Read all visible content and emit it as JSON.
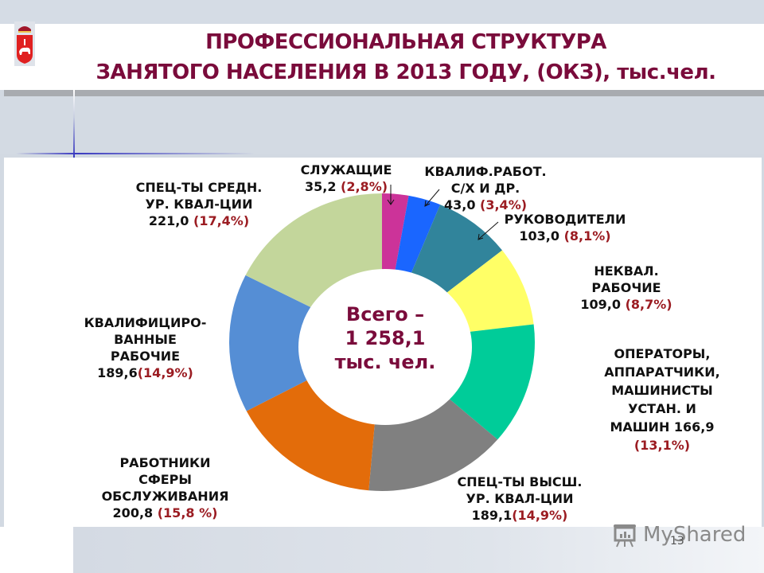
{
  "header": {
    "title_line1": "ПРОФЕССИОНАЛЬНАЯ СТРУКТУРА",
    "title_line2": "ЗАНЯТОГО НАСЕЛЕНИЯ В 2013 ГОДУ, (ОКЗ), тыс.чел.",
    "logo": "perm-krai-coat-of-arms-icon"
  },
  "center": {
    "line1": "Всего –",
    "line2": "1 258,1",
    "line3": "тыс. чел."
  },
  "labels": {
    "sluzhashchie": {
      "l1": "СЛУЖАЩИЕ",
      "value": "35,2",
      "pct": "(2,8%)"
    },
    "kvalif_sh": {
      "l1": "КВАЛИФ.РАБОТ.",
      "l2": "С/Х И ДР.",
      "value": "43,0",
      "pct": "(3,4%)"
    },
    "rukovoditeli": {
      "l1": "РУКОВОДИТЕЛИ",
      "value": "103,0",
      "pct": "(8,1%)"
    },
    "nekval": {
      "l1": "НЕКВАЛ.",
      "l2": "РАБОЧИЕ",
      "value": "109,0",
      "pct": "(8,7%)"
    },
    "operatory": {
      "l1": "ОПЕРАТОРЫ,",
      "l2": "АППАРАТЧИКИ,",
      "l3": "МАШИНИСТЫ",
      "l4": "УСТАН. И",
      "l5": "МАШИН 166,9",
      "pct": "(13,1%)"
    },
    "spec_vyssh": {
      "l1": "СПЕЦ-ТЫ ВЫСШ.",
      "l2": "УР. КВАЛ-ЦИИ",
      "value": "189,1",
      "pct": "(14,9%)"
    },
    "rabotniki": {
      "l1": "РАБОТНИКИ",
      "l2": "СФЕРЫ",
      "l3": "ОБСЛУЖИВАНИЯ",
      "value": "200,8",
      "pct": "(15,8 %)"
    },
    "kvalif_rab": {
      "l1": "КВАЛИФИЦИРО-",
      "l2": "ВАННЫЕ",
      "l3": "РАБОЧИЕ",
      "value": "189,6",
      "pct": "(14,9%)"
    },
    "spec_sredn": {
      "l1": "СПЕЦ-ТЫ СРЕДН.",
      "l2": "УР. КВАЛ-ЦИИ",
      "value": "221,0",
      "pct": "(17,4%)"
    }
  },
  "footer": {
    "watermark": "MyShared",
    "page_number": "13"
  },
  "colors": {
    "title": "#7a0b3b",
    "percent": "#9b1c22"
  },
  "chart_data": {
    "type": "pie",
    "donut": true,
    "title": "Профессиональная структура занятого населения в 2013 году, (ОКЗ), тыс.чел.",
    "total": 1258.1,
    "total_label": "Всего – 1 258,1 тыс. чел.",
    "start_angle": "12 o'clock, clockwise",
    "categories": [
      "Служащие",
      "Квалиф. работ. с/х и др.",
      "Руководители",
      "Неквал. рабочие",
      "Операторы, аппаратчики, машинисты установ. и машин",
      "Спец-ты высш. ур. квал-ции",
      "Работники сферы обслуживания",
      "Квалифицированные рабочие",
      "Спец-ты средн. ур. квал-ции"
    ],
    "values": [
      35.2,
      43.0,
      103.0,
      109.0,
      166.9,
      189.1,
      200.8,
      189.6,
      221.0
    ],
    "percents": [
      2.8,
      3.4,
      8.1,
      8.7,
      13.1,
      14.9,
      15.8,
      14.9,
      17.4
    ],
    "slice_colors": [
      "#cc3399",
      "#1a66ff",
      "#31849b",
      "#ffff66",
      "#00cc99",
      "#808080",
      "#e36c0a",
      "#558ed5",
      "#c3d69b"
    ],
    "legend": "none (direct labels)"
  }
}
